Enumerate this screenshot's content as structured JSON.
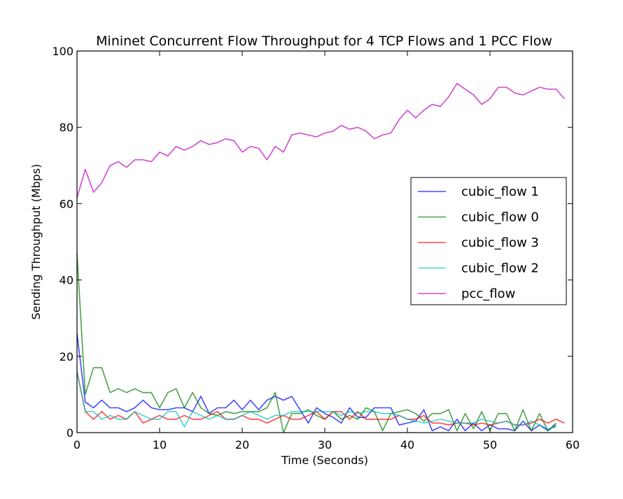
{
  "chart_data": {
    "type": "line",
    "title": "Mininet Concurrent Flow Throughput for 4 TCP Flows and 1 PCC Flow",
    "xlabel": "Time (Seconds)",
    "ylabel": "Sending Throughput (Mbps)",
    "xlim": [
      0,
      60
    ],
    "ylim": [
      0,
      100
    ],
    "xticks": [
      0,
      10,
      20,
      30,
      40,
      50,
      60
    ],
    "yticks": [
      0,
      20,
      40,
      60,
      80,
      100
    ],
    "grid": false,
    "legend_position": "center-right",
    "x": [
      0,
      1,
      2,
      3,
      4,
      5,
      6,
      7,
      8,
      9,
      10,
      11,
      12,
      13,
      14,
      15,
      16,
      17,
      18,
      19,
      20,
      21,
      22,
      23,
      24,
      25,
      26,
      27,
      28,
      29,
      30,
      31,
      32,
      33,
      34,
      35,
      36,
      37,
      38,
      39,
      40,
      41,
      42,
      43,
      44,
      45,
      46,
      47,
      48,
      49,
      50,
      51,
      52,
      53,
      54,
      55,
      56,
      57,
      58,
      59
    ],
    "series": [
      {
        "name": "cubic_flow 1",
        "color": "#0000ff",
        "values": [
          26,
          8,
          6.5,
          8.5,
          6.5,
          6.5,
          5.5,
          6.5,
          8.5,
          6.5,
          6,
          6,
          6.5,
          6.5,
          5.5,
          9.5,
          5,
          6.5,
          6.5,
          8.5,
          6,
          8.5,
          6,
          8.5,
          9.5,
          8.5,
          9.5,
          6,
          2.5,
          6.5,
          5,
          4,
          2.5,
          6.5,
          4,
          4,
          6.5,
          6.5,
          6.5,
          2,
          2.5,
          3,
          6,
          0.5,
          1.5,
          0.5,
          3.5,
          0.5,
          2.5,
          0.5,
          2,
          1,
          1,
          0.5,
          3,
          0.5,
          2,
          0.5,
          2,
          null
        ]
      },
      {
        "name": "cubic_flow 0",
        "color": "#008000",
        "values": [
          47,
          10,
          17,
          17,
          10.5,
          11.5,
          10.5,
          11.5,
          10.5,
          10.5,
          6.5,
          10.5,
          11.5,
          6.5,
          10.5,
          6.5,
          5,
          4.5,
          5.5,
          5,
          5.5,
          5.5,
          5.5,
          6.5,
          10.5,
          0,
          5,
          5,
          6,
          4.5,
          3.5,
          5.5,
          3.5,
          4.5,
          3.5,
          6.5,
          5.5,
          0.5,
          5,
          5.5,
          6,
          5,
          3,
          5,
          5,
          6,
          0.5,
          5,
          1,
          5.5,
          0.5,
          5,
          5,
          0.5,
          6,
          0.5,
          5,
          0.5,
          2.5,
          null
        ]
      },
      {
        "name": "cubic_flow 3",
        "color": "#ff0000",
        "values": [
          16,
          5.5,
          3.5,
          5.5,
          3.5,
          4.5,
          3.5,
          5.5,
          2.5,
          3.5,
          4.5,
          3.5,
          3.5,
          4.5,
          3.5,
          3.5,
          4.5,
          5.5,
          3.5,
          3.5,
          4.5,
          3.5,
          3.5,
          2.5,
          3.5,
          4.5,
          3.5,
          3.5,
          4.5,
          5.5,
          3.5,
          5.5,
          5.5,
          3.5,
          5.5,
          3.5,
          3.5,
          3.5,
          3.5,
          4.5,
          3.5,
          3.5,
          4.5,
          2.5,
          2.5,
          2,
          2.5,
          2.5,
          2,
          2.5,
          2,
          2.5,
          3,
          2,
          2,
          2.5,
          3.5,
          2.5,
          3.5,
          2.5
        ]
      },
      {
        "name": "cubic_flow 2",
        "color": "#00bfbf",
        "values": [
          16,
          5.5,
          5.5,
          3.5,
          4.5,
          3.5,
          3.5,
          5.5,
          4.5,
          3.5,
          3.5,
          5.5,
          5.5,
          1.5,
          5.5,
          4.5,
          3.5,
          4.5,
          3.5,
          3.5,
          4.5,
          5.5,
          4.5,
          3.5,
          4.5,
          4.5,
          5.5,
          5.5,
          5.5,
          5.5,
          5.5,
          5.5,
          4.5,
          5.5,
          5,
          5.5,
          5.5,
          5,
          5,
          4.5,
          3.5,
          3,
          2.5,
          3,
          3.5,
          3,
          2.5,
          2.5,
          2.5,
          3.5,
          3,
          2.5,
          3,
          2,
          2,
          3,
          2,
          1,
          1.5,
          null
        ]
      },
      {
        "name": "pcc_flow",
        "color": "#bf00bf",
        "values": [
          61.5,
          69,
          63,
          65.5,
          70,
          71,
          69.5,
          71.5,
          71.5,
          71,
          73.5,
          72.5,
          75,
          74,
          75,
          76.5,
          75.5,
          76,
          77,
          76.5,
          73.5,
          75,
          74.5,
          71.5,
          75,
          73.5,
          78,
          78.5,
          78,
          77.5,
          78.5,
          79,
          80.5,
          79.5,
          80,
          79,
          77,
          78,
          78.5,
          82,
          84.5,
          82.5,
          84.5,
          86,
          85.5,
          88,
          91.5,
          90,
          88.5,
          86,
          87.5,
          90.5,
          90.5,
          89,
          88.5,
          89.5,
          90.5,
          90,
          90,
          87.5
        ]
      }
    ]
  }
}
